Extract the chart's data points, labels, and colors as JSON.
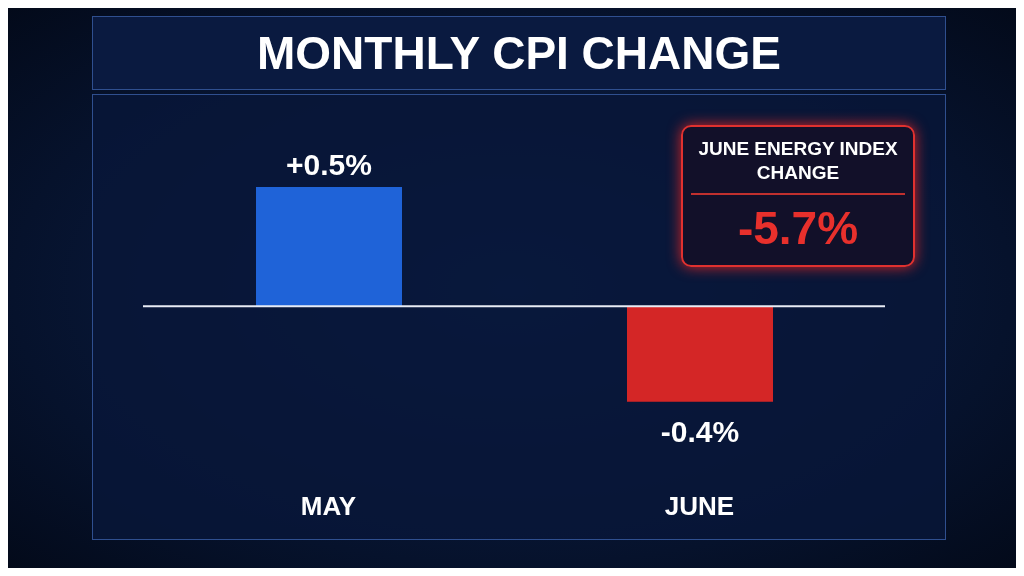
{
  "chart_data": {
    "type": "bar",
    "title": "MONTHLY CPI CHANGE",
    "categories": [
      "MAY",
      "JUNE"
    ],
    "values": [
      0.5,
      -0.4
    ],
    "colors": [
      "#1f63d8",
      "#d42626"
    ],
    "data_labels": true,
    "value_labels": [
      "+0.5%",
      "-0.4%"
    ],
    "annotations": [
      "JUNE ENERGY INDEX CHANGE",
      "-5.7%"
    ]
  }
}
